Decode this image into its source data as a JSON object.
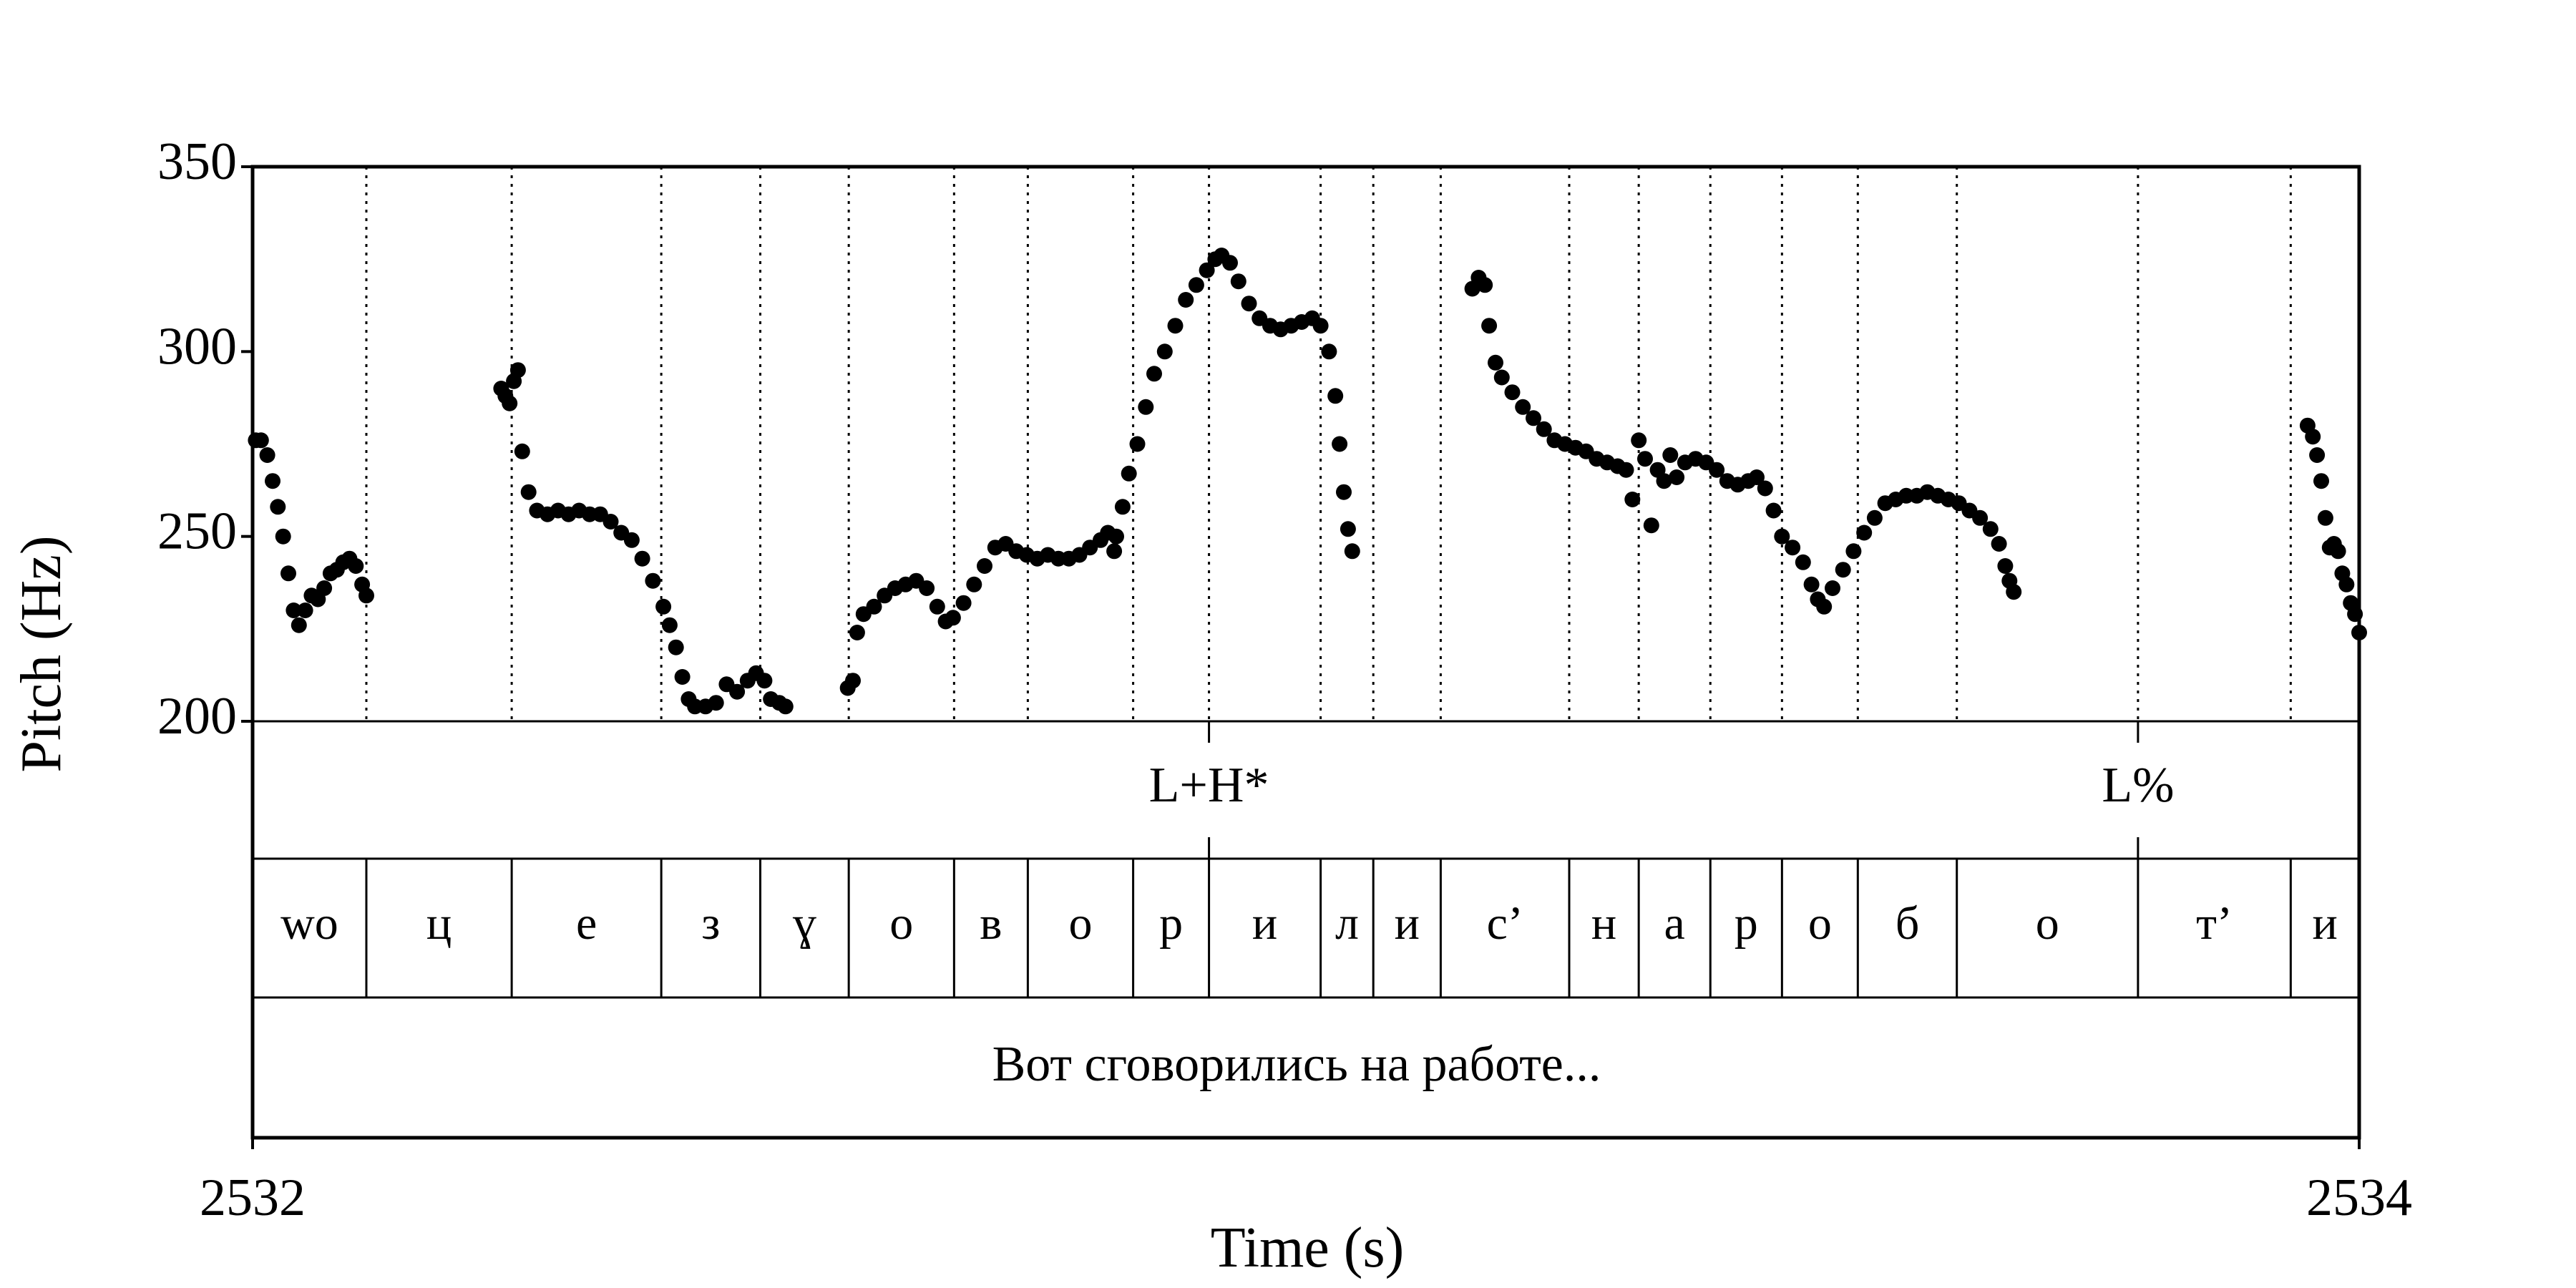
{
  "chart_data": {
    "type": "scatter",
    "xlabel": "Time (s)",
    "ylabel": "Pitch (Hz)",
    "xlim": [
      2532,
      2534
    ],
    "ylim": [
      200,
      350
    ],
    "x_ticks": [
      {
        "value": 2532,
        "label": "2532"
      },
      {
        "value": 2534,
        "label": "2534"
      }
    ],
    "y_ticks": [
      {
        "value": 200,
        "label": "200"
      },
      {
        "value": 250,
        "label": "250"
      },
      {
        "value": 300,
        "label": "300"
      },
      {
        "value": 350,
        "label": "350"
      }
    ],
    "grid": false,
    "series": [
      {
        "points": [
          [
            2532.003,
            276
          ],
          [
            2532.008,
            276
          ],
          [
            2532.014,
            272
          ],
          [
            2532.019,
            265
          ],
          [
            2532.024,
            258
          ],
          [
            2532.029,
            250
          ],
          [
            2532.034,
            240
          ],
          [
            2532.039,
            230
          ],
          [
            2532.044,
            226
          ],
          [
            2532.05,
            230
          ],
          [
            2532.056,
            234
          ],
          [
            2532.062,
            233
          ],
          [
            2532.068,
            236
          ],
          [
            2532.074,
            240
          ],
          [
            2532.08,
            241
          ],
          [
            2532.086,
            243
          ],
          [
            2532.092,
            244
          ],
          [
            2532.098,
            242
          ],
          [
            2532.104,
            237
          ],
          [
            2532.108,
            234
          ],
          [
            2532.236,
            290
          ],
          [
            2532.24,
            288
          ],
          [
            2532.244,
            286
          ],
          [
            2532.248,
            292
          ],
          [
            2532.252,
            295
          ],
          [
            2532.256,
            273
          ],
          [
            2532.262,
            262
          ],
          [
            2532.27,
            257
          ],
          [
            2532.28,
            256
          ],
          [
            2532.29,
            257
          ],
          [
            2532.3,
            256
          ],
          [
            2532.31,
            257
          ],
          [
            2532.32,
            256
          ],
          [
            2532.33,
            256
          ],
          [
            2532.34,
            254
          ],
          [
            2532.35,
            251
          ],
          [
            2532.36,
            249
          ],
          [
            2532.37,
            244
          ],
          [
            2532.38,
            238
          ],
          [
            2532.39,
            231
          ],
          [
            2532.396,
            226
          ],
          [
            2532.402,
            220
          ],
          [
            2532.408,
            212
          ],
          [
            2532.414,
            206
          ],
          [
            2532.42,
            204
          ],
          [
            2532.43,
            204
          ],
          [
            2532.44,
            205
          ],
          [
            2532.45,
            210
          ],
          [
            2532.46,
            208
          ],
          [
            2532.47,
            211
          ],
          [
            2532.478,
            213
          ],
          [
            2532.486,
            211
          ],
          [
            2532.492,
            206
          ],
          [
            2532.5,
            205
          ],
          [
            2532.506,
            204
          ],
          [
            2532.565,
            209
          ],
          [
            2532.57,
            211
          ],
          [
            2532.574,
            224
          ],
          [
            2532.58,
            229
          ],
          [
            2532.59,
            231
          ],
          [
            2532.6,
            234
          ],
          [
            2532.61,
            236
          ],
          [
            2532.62,
            237
          ],
          [
            2532.63,
            238
          ],
          [
            2532.64,
            236
          ],
          [
            2532.65,
            231
          ],
          [
            2532.658,
            227
          ],
          [
            2532.665,
            228
          ],
          [
            2532.675,
            232
          ],
          [
            2532.685,
            237
          ],
          [
            2532.695,
            242
          ],
          [
            2532.705,
            247
          ],
          [
            2532.715,
            248
          ],
          [
            2532.725,
            246
          ],
          [
            2532.735,
            245
          ],
          [
            2532.745,
            244
          ],
          [
            2532.755,
            245
          ],
          [
            2532.765,
            244
          ],
          [
            2532.775,
            244
          ],
          [
            2532.785,
            245
          ],
          [
            2532.795,
            247
          ],
          [
            2532.805,
            249
          ],
          [
            2532.812,
            251
          ],
          [
            2532.818,
            246
          ],
          [
            2532.82,
            250
          ],
          [
            2532.826,
            258
          ],
          [
            2532.832,
            267
          ],
          [
            2532.84,
            275
          ],
          [
            2532.848,
            285
          ],
          [
            2532.856,
            294
          ],
          [
            2532.866,
            300
          ],
          [
            2532.876,
            307
          ],
          [
            2532.886,
            314
          ],
          [
            2532.896,
            318
          ],
          [
            2532.906,
            322
          ],
          [
            2532.914,
            325
          ],
          [
            2532.92,
            326
          ],
          [
            2532.928,
            324
          ],
          [
            2532.936,
            319
          ],
          [
            2532.946,
            313
          ],
          [
            2532.956,
            309
          ],
          [
            2532.966,
            307
          ],
          [
            2532.976,
            306
          ],
          [
            2532.986,
            307
          ],
          [
            2532.996,
            308
          ],
          [
            2533.006,
            309
          ],
          [
            2533.014,
            307
          ],
          [
            2533.022,
            300
          ],
          [
            2533.028,
            288
          ],
          [
            2533.032,
            275
          ],
          [
            2533.036,
            262
          ],
          [
            2533.04,
            252
          ],
          [
            2533.044,
            246
          ],
          [
            2533.158,
            317
          ],
          [
            2533.164,
            320
          ],
          [
            2533.17,
            318
          ],
          [
            2533.174,
            307
          ],
          [
            2533.18,
            297
          ],
          [
            2533.186,
            293
          ],
          [
            2533.196,
            289
          ],
          [
            2533.206,
            285
          ],
          [
            2533.216,
            282
          ],
          [
            2533.226,
            279
          ],
          [
            2533.236,
            276
          ],
          [
            2533.246,
            275
          ],
          [
            2533.256,
            274
          ],
          [
            2533.266,
            273
          ],
          [
            2533.276,
            271
          ],
          [
            2533.286,
            270
          ],
          [
            2533.296,
            269
          ],
          [
            2533.304,
            268
          ],
          [
            2533.31,
            260
          ],
          [
            2533.316,
            276
          ],
          [
            2533.322,
            271
          ],
          [
            2533.328,
            253
          ],
          [
            2533.334,
            268
          ],
          [
            2533.34,
            265
          ],
          [
            2533.346,
            272
          ],
          [
            2533.352,
            266
          ],
          [
            2533.36,
            270
          ],
          [
            2533.37,
            271
          ],
          [
            2533.38,
            270
          ],
          [
            2533.39,
            268
          ],
          [
            2533.4,
            265
          ],
          [
            2533.41,
            264
          ],
          [
            2533.42,
            265
          ],
          [
            2533.428,
            266
          ],
          [
            2533.436,
            263
          ],
          [
            2533.444,
            257
          ],
          [
            2533.452,
            250
          ],
          [
            2533.462,
            247
          ],
          [
            2533.472,
            243
          ],
          [
            2533.48,
            237
          ],
          [
            2533.486,
            233
          ],
          [
            2533.492,
            231
          ],
          [
            2533.5,
            236
          ],
          [
            2533.51,
            241
          ],
          [
            2533.52,
            246
          ],
          [
            2533.53,
            251
          ],
          [
            2533.54,
            255
          ],
          [
            2533.55,
            259
          ],
          [
            2533.56,
            260
          ],
          [
            2533.57,
            261
          ],
          [
            2533.58,
            261
          ],
          [
            2533.59,
            262
          ],
          [
            2533.6,
            261
          ],
          [
            2533.61,
            260
          ],
          [
            2533.62,
            259
          ],
          [
            2533.63,
            257
          ],
          [
            2533.64,
            255
          ],
          [
            2533.65,
            252
          ],
          [
            2533.658,
            248
          ],
          [
            2533.664,
            242
          ],
          [
            2533.668,
            238
          ],
          [
            2533.672,
            235
          ],
          [
            2533.951,
            280
          ],
          [
            2533.956,
            277
          ],
          [
            2533.96,
            272
          ],
          [
            2533.964,
            265
          ],
          [
            2533.968,
            255
          ],
          [
            2533.972,
            247
          ],
          [
            2533.976,
            248
          ],
          [
            2533.98,
            246
          ],
          [
            2533.984,
            240
          ],
          [
            2533.988,
            237
          ],
          [
            2533.992,
            232
          ],
          [
            2533.996,
            229
          ],
          [
            2534.0,
            224
          ]
        ]
      }
    ],
    "boundaries": [
      2532.108,
      2532.246,
      2532.388,
      2532.482,
      2532.566,
      2532.666,
      2532.736,
      2532.836,
      2532.908,
      2533.014,
      2533.064,
      2533.128,
      2533.25,
      2533.316,
      2533.384,
      2533.452,
      2533.524,
      2533.618,
      2533.79,
      2533.935
    ],
    "tones": [
      {
        "x": 2532.908,
        "label": "L+H*"
      },
      {
        "x": 2533.79,
        "label": "L%"
      }
    ],
    "segments": [
      {
        "start": 2532.0,
        "end": 2532.108,
        "label": "wo"
      },
      {
        "start": 2532.108,
        "end": 2532.246,
        "label": "ц"
      },
      {
        "start": 2532.246,
        "end": 2532.388,
        "label": "е"
      },
      {
        "start": 2532.388,
        "end": 2532.482,
        "label": "з"
      },
      {
        "start": 2532.482,
        "end": 2532.566,
        "label": "ɣ"
      },
      {
        "start": 2532.566,
        "end": 2532.666,
        "label": "о"
      },
      {
        "start": 2532.666,
        "end": 2532.736,
        "label": "в"
      },
      {
        "start": 2532.736,
        "end": 2532.836,
        "label": "о"
      },
      {
        "start": 2532.836,
        "end": 2532.908,
        "label": "р"
      },
      {
        "start": 2532.908,
        "end": 2533.014,
        "label": "и"
      },
      {
        "start": 2533.014,
        "end": 2533.064,
        "label": "л"
      },
      {
        "start": 2533.064,
        "end": 2533.128,
        "label": "и"
      },
      {
        "start": 2533.128,
        "end": 2533.25,
        "label": "с’"
      },
      {
        "start": 2533.25,
        "end": 2533.316,
        "label": "н"
      },
      {
        "start": 2533.316,
        "end": 2533.384,
        "label": "а"
      },
      {
        "start": 2533.384,
        "end": 2533.452,
        "label": "р"
      },
      {
        "start": 2533.452,
        "end": 2533.524,
        "label": "о"
      },
      {
        "start": 2533.524,
        "end": 2533.618,
        "label": "б"
      },
      {
        "start": 2533.618,
        "end": 2533.79,
        "label": "о"
      },
      {
        "start": 2533.79,
        "end": 2533.935,
        "label": "т’"
      },
      {
        "start": 2533.935,
        "end": 2534.0,
        "label": "и"
      }
    ],
    "sentence": "Вот сговорились на работе..."
  }
}
